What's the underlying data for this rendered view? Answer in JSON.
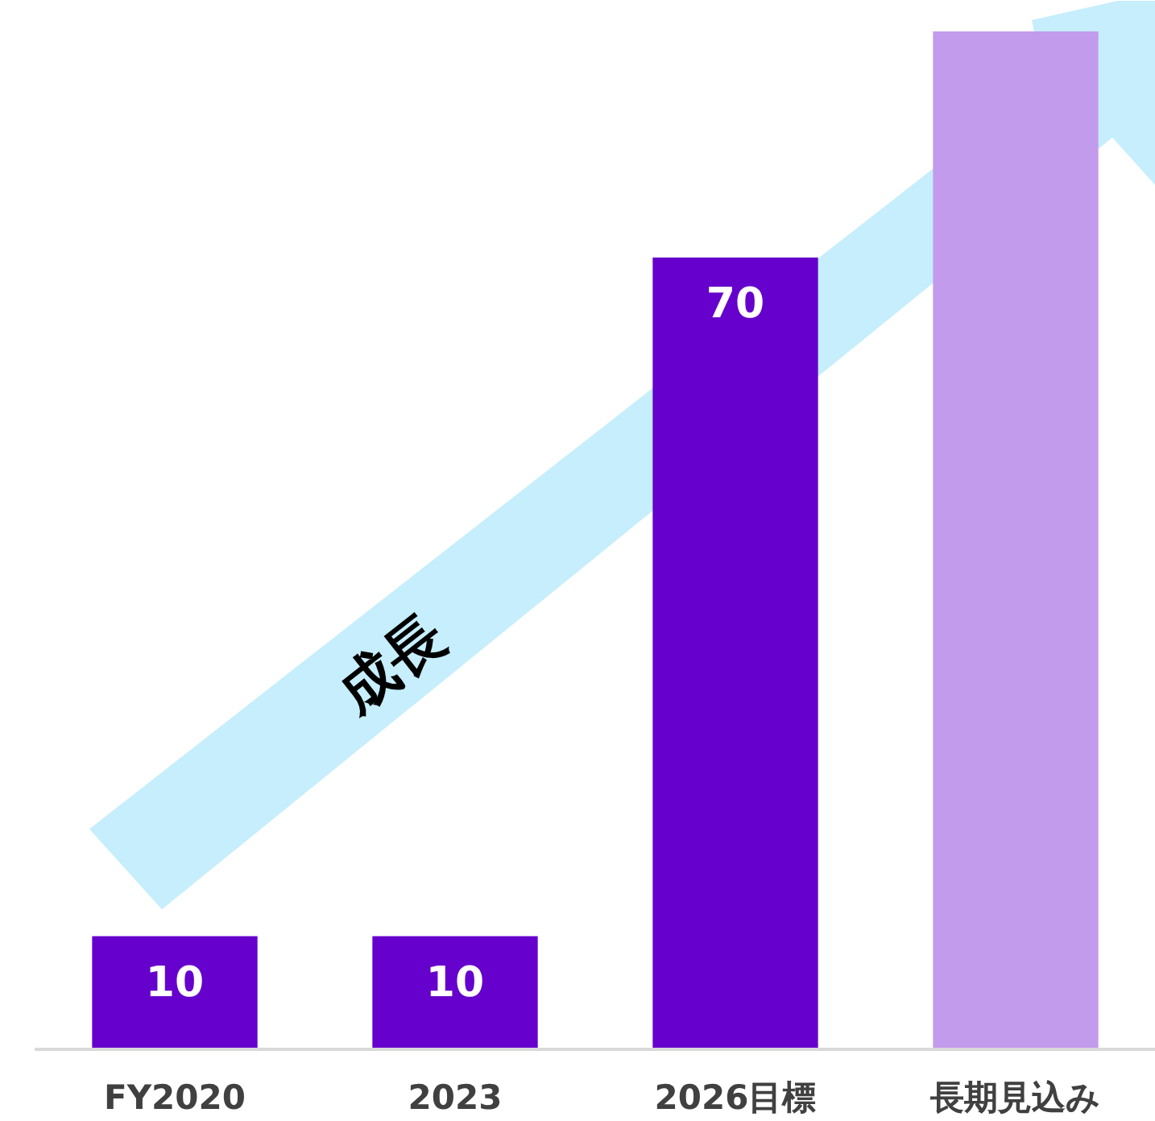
{
  "chart_data": {
    "type": "bar",
    "categories": [
      "FY2020",
      "2023",
      "2026目標",
      "長期見込み"
    ],
    "values": [
      10,
      10,
      70,
      90
    ],
    "colors": [
      "#6600cc",
      "#6600cc",
      "#6600cc",
      "#c39bec"
    ],
    "value_labels": [
      "10",
      "10",
      "70",
      null
    ],
    "annotations": [
      "成長"
    ],
    "grid": false
  }
}
